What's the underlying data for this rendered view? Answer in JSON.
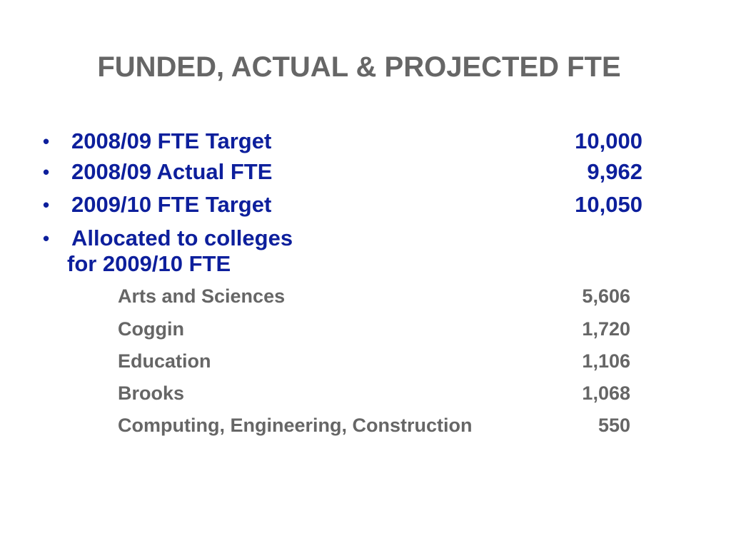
{
  "slide": {
    "title": "FUNDED, ACTUAL & PROJECTED FTE",
    "bullet_symbol": "•",
    "bullets": [
      {
        "label": "2008/09 FTE Target",
        "value": "10,000"
      },
      {
        "label": "2008/09 Actual FTE",
        "value": "9,962"
      },
      {
        "label": "2009/10 FTE Target",
        "value": "10,050"
      }
    ],
    "allocated": {
      "line1": "Allocated to colleges",
      "line2": "for 2009/10 FTE"
    },
    "colleges": [
      {
        "name": "Arts and Sciences",
        "value": "5,606"
      },
      {
        "name": "Coggin",
        "value": "1,720"
      },
      {
        "name": "Education",
        "value": "1,106"
      },
      {
        "name": "Brooks",
        "value": "1,068"
      },
      {
        "name": "Computing, Engineering, Construction",
        "value": "550"
      }
    ]
  }
}
